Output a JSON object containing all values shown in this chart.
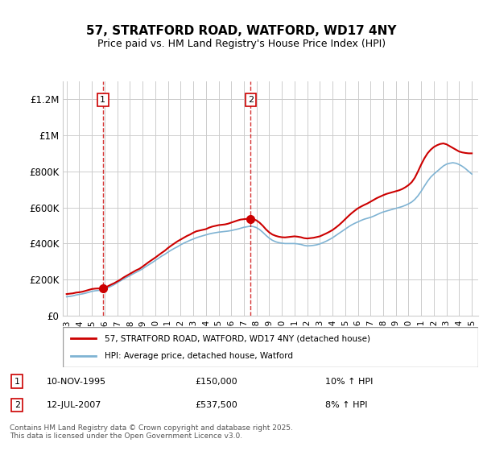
{
  "title": "57, STRATFORD ROAD, WATFORD, WD17 4NY",
  "subtitle": "Price paid vs. HM Land Registry's House Price Index (HPI)",
  "ylabel_ticks": [
    "£0",
    "£200K",
    "£400K",
    "£600K",
    "£800K",
    "£1M",
    "£1.2M"
  ],
  "ytick_values": [
    0,
    200000,
    400000,
    600000,
    800000,
    1000000,
    1200000
  ],
  "ylim": [
    0,
    1300000
  ],
  "xlim_start": 1993,
  "xlim_end": 2025.5,
  "xticks": [
    1993,
    1994,
    1995,
    1996,
    1997,
    1998,
    1999,
    2000,
    2001,
    2002,
    2003,
    2004,
    2005,
    2006,
    2007,
    2008,
    2009,
    2010,
    2011,
    2012,
    2013,
    2014,
    2015,
    2016,
    2017,
    2018,
    2019,
    2020,
    2021,
    2022,
    2023,
    2024,
    2025
  ],
  "legend_label_red": "57, STRATFORD ROAD, WATFORD, WD17 4NY (detached house)",
  "legend_label_blue": "HPI: Average price, detached house, Watford",
  "red_color": "#cc0000",
  "blue_color": "#7fb3d3",
  "marker1_x": 1995.86,
  "marker1_y": 150000,
  "marker2_x": 2007.54,
  "marker2_y": 537500,
  "annotation1": [
    "1",
    "10-NOV-1995",
    "£150,000",
    "10% ↑ HPI"
  ],
  "annotation2": [
    "2",
    "12-JUL-2007",
    "£537,500",
    "8% ↑ HPI"
  ],
  "footer": "Contains HM Land Registry data © Crown copyright and database right 2025.\nThis data is licensed under the Open Government Licence v3.0.",
  "red_x": [
    1993.0,
    1993.25,
    1993.5,
    1993.75,
    1994.0,
    1994.25,
    1994.5,
    1994.75,
    1995.0,
    1995.25,
    1995.5,
    1995.86,
    1996.0,
    1996.25,
    1996.5,
    1996.75,
    1997.0,
    1997.25,
    1997.5,
    1997.75,
    1998.0,
    1998.25,
    1998.5,
    1998.75,
    1999.0,
    1999.25,
    1999.5,
    1999.75,
    2000.0,
    2000.25,
    2000.5,
    2000.75,
    2001.0,
    2001.25,
    2001.5,
    2001.75,
    2002.0,
    2002.25,
    2002.5,
    2002.75,
    2003.0,
    2003.25,
    2003.5,
    2003.75,
    2004.0,
    2004.25,
    2004.5,
    2004.75,
    2005.0,
    2005.25,
    2005.5,
    2005.75,
    2006.0,
    2006.25,
    2006.5,
    2006.75,
    2007.0,
    2007.25,
    2007.54,
    2007.75,
    2008.0,
    2008.25,
    2008.5,
    2008.75,
    2009.0,
    2009.25,
    2009.5,
    2009.75,
    2010.0,
    2010.25,
    2010.5,
    2010.75,
    2011.0,
    2011.25,
    2011.5,
    2011.75,
    2012.0,
    2012.25,
    2012.5,
    2012.75,
    2013.0,
    2013.25,
    2013.5,
    2013.75,
    2014.0,
    2014.25,
    2014.5,
    2014.75,
    2015.0,
    2015.25,
    2015.5,
    2015.75,
    2016.0,
    2016.25,
    2016.5,
    2016.75,
    2017.0,
    2017.25,
    2017.5,
    2017.75,
    2018.0,
    2018.25,
    2018.5,
    2018.75,
    2019.0,
    2019.25,
    2019.5,
    2019.75,
    2020.0,
    2020.25,
    2020.5,
    2020.75,
    2021.0,
    2021.25,
    2021.5,
    2021.75,
    2022.0,
    2022.25,
    2022.5,
    2022.75,
    2023.0,
    2023.25,
    2023.5,
    2023.75,
    2024.0,
    2024.25,
    2024.5,
    2024.75,
    2025.0
  ],
  "red_y": [
    120000,
    122000,
    124000,
    128000,
    130000,
    133000,
    138000,
    143000,
    148000,
    150000,
    151000,
    150000,
    155000,
    163000,
    172000,
    180000,
    190000,
    200000,
    212000,
    222000,
    232000,
    242000,
    252000,
    260000,
    272000,
    285000,
    298000,
    310000,
    322000,
    335000,
    348000,
    360000,
    375000,
    388000,
    400000,
    412000,
    422000,
    432000,
    442000,
    450000,
    460000,
    468000,
    472000,
    476000,
    480000,
    488000,
    494000,
    498000,
    502000,
    504000,
    506000,
    510000,
    516000,
    522000,
    528000,
    533000,
    535000,
    537000,
    537500,
    535000,
    528000,
    515000,
    498000,
    478000,
    462000,
    450000,
    443000,
    438000,
    435000,
    434000,
    436000,
    438000,
    440000,
    438000,
    435000,
    430000,
    428000,
    430000,
    432000,
    436000,
    440000,
    448000,
    456000,
    465000,
    475000,
    488000,
    502000,
    518000,
    535000,
    552000,
    568000,
    582000,
    595000,
    605000,
    614000,
    622000,
    632000,
    642000,
    652000,
    660000,
    668000,
    675000,
    680000,
    685000,
    690000,
    695000,
    702000,
    712000,
    724000,
    740000,
    765000,
    800000,
    838000,
    872000,
    900000,
    920000,
    935000,
    945000,
    952000,
    955000,
    950000,
    940000,
    930000,
    920000,
    910000,
    905000,
    902000,
    900000,
    900000
  ],
  "blue_x": [
    1993.0,
    1993.25,
    1993.5,
    1993.75,
    1994.0,
    1994.25,
    1994.5,
    1994.75,
    1995.0,
    1995.25,
    1995.5,
    1995.75,
    1996.0,
    1996.25,
    1996.5,
    1996.75,
    1997.0,
    1997.25,
    1997.5,
    1997.75,
    1998.0,
    1998.25,
    1998.5,
    1998.75,
    1999.0,
    1999.25,
    1999.5,
    1999.75,
    2000.0,
    2000.25,
    2000.5,
    2000.75,
    2001.0,
    2001.25,
    2001.5,
    2001.75,
    2002.0,
    2002.25,
    2002.5,
    2002.75,
    2003.0,
    2003.25,
    2003.5,
    2003.75,
    2004.0,
    2004.25,
    2004.5,
    2004.75,
    2005.0,
    2005.25,
    2005.5,
    2005.75,
    2006.0,
    2006.25,
    2006.5,
    2006.75,
    2007.0,
    2007.25,
    2007.5,
    2007.75,
    2008.0,
    2008.25,
    2008.5,
    2008.75,
    2009.0,
    2009.25,
    2009.5,
    2009.75,
    2010.0,
    2010.25,
    2010.5,
    2010.75,
    2011.0,
    2011.25,
    2011.5,
    2011.75,
    2012.0,
    2012.25,
    2012.5,
    2012.75,
    2013.0,
    2013.25,
    2013.5,
    2013.75,
    2014.0,
    2014.25,
    2014.5,
    2014.75,
    2015.0,
    2015.25,
    2015.5,
    2015.75,
    2016.0,
    2016.25,
    2016.5,
    2016.75,
    2017.0,
    2017.25,
    2017.5,
    2017.75,
    2018.0,
    2018.25,
    2018.5,
    2018.75,
    2019.0,
    2019.25,
    2019.5,
    2019.75,
    2020.0,
    2020.25,
    2020.5,
    2020.75,
    2021.0,
    2021.25,
    2021.5,
    2021.75,
    2022.0,
    2022.25,
    2022.5,
    2022.75,
    2023.0,
    2023.25,
    2023.5,
    2023.75,
    2024.0,
    2024.25,
    2024.5,
    2024.75,
    2025.0
  ],
  "blue_y": [
    105000,
    107000,
    110000,
    115000,
    118000,
    121000,
    125000,
    130000,
    135000,
    138000,
    140000,
    143000,
    148000,
    155000,
    163000,
    172000,
    183000,
    193000,
    203000,
    213000,
    222000,
    232000,
    241000,
    250000,
    260000,
    272000,
    283000,
    294000,
    306000,
    318000,
    330000,
    340000,
    352000,
    363000,
    373000,
    382000,
    393000,
    402000,
    410000,
    418000,
    425000,
    432000,
    438000,
    443000,
    448000,
    453000,
    457000,
    460000,
    463000,
    465000,
    467000,
    469000,
    472000,
    476000,
    480000,
    485000,
    490000,
    493000,
    496000,
    494000,
    488000,
    477000,
    462000,
    445000,
    430000,
    418000,
    410000,
    405000,
    402000,
    400000,
    400000,
    400000,
    400000,
    398000,
    395000,
    390000,
    387000,
    388000,
    390000,
    393000,
    398000,
    405000,
    413000,
    422000,
    432000,
    444000,
    456000,
    468000,
    480000,
    492000,
    503000,
    512000,
    520000,
    528000,
    535000,
    540000,
    545000,
    552000,
    560000,
    568000,
    575000,
    580000,
    585000,
    590000,
    595000,
    600000,
    605000,
    612000,
    620000,
    630000,
    645000,
    665000,
    690000,
    718000,
    745000,
    768000,
    785000,
    800000,
    815000,
    830000,
    840000,
    845000,
    848000,
    845000,
    838000,
    828000,
    815000,
    800000,
    785000
  ]
}
